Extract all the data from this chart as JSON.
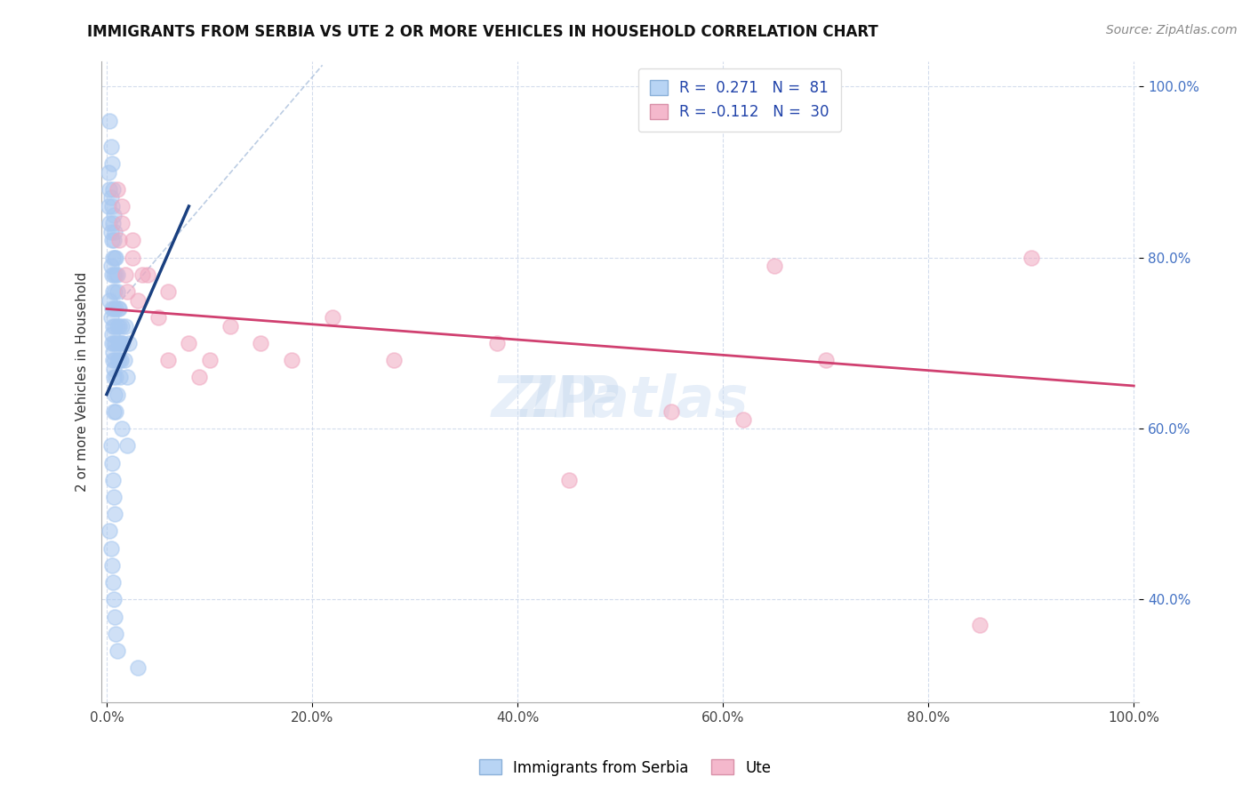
{
  "title": "IMMIGRANTS FROM SERBIA VS UTE 2 OR MORE VEHICLES IN HOUSEHOLD CORRELATION CHART",
  "source_text": "Source: ZipAtlas.com",
  "ylabel": "2 or more Vehicles in Household",
  "xlim": [
    -0.005,
    1.005
  ],
  "ylim": [
    0.28,
    1.03
  ],
  "xtick_vals": [
    0.0,
    0.2,
    0.4,
    0.6,
    0.8,
    1.0
  ],
  "xtick_labels": [
    "0.0%",
    "20.0%",
    "40.0%",
    "60.0%",
    "80.0%",
    "100.0%"
  ],
  "ytick_vals": [
    0.4,
    0.6,
    0.8,
    1.0
  ],
  "ytick_labels": [
    "40.0%",
    "60.0%",
    "80.0%",
    "100.0%"
  ],
  "blue_scatter_color": "#a8c8f0",
  "pink_scatter_color": "#f0a8c0",
  "blue_line_color": "#1a4080",
  "pink_line_color": "#d04070",
  "dash_line_color": "#a0b8d8",
  "watermark": "ZIPatlas",
  "serbia_x": [
    0.002,
    0.002,
    0.003,
    0.003,
    0.004,
    0.004,
    0.004,
    0.005,
    0.005,
    0.005,
    0.005,
    0.005,
    0.006,
    0.006,
    0.006,
    0.006,
    0.006,
    0.007,
    0.007,
    0.007,
    0.007,
    0.007,
    0.007,
    0.008,
    0.008,
    0.008,
    0.008,
    0.008,
    0.009,
    0.009,
    0.009,
    0.009,
    0.009,
    0.01,
    0.01,
    0.01,
    0.01,
    0.011,
    0.011,
    0.012,
    0.012,
    0.013,
    0.013,
    0.014,
    0.015,
    0.016,
    0.017,
    0.018,
    0.02,
    0.022,
    0.003,
    0.004,
    0.005,
    0.006,
    0.007,
    0.008,
    0.009,
    0.01,
    0.012,
    0.015,
    0.004,
    0.005,
    0.006,
    0.007,
    0.008,
    0.003,
    0.004,
    0.005,
    0.006,
    0.007,
    0.003,
    0.004,
    0.005,
    0.006,
    0.007,
    0.008,
    0.009,
    0.01,
    0.015,
    0.02,
    0.03
  ],
  "serbia_y": [
    0.9,
    0.86,
    0.88,
    0.84,
    0.87,
    0.83,
    0.79,
    0.86,
    0.82,
    0.78,
    0.74,
    0.7,
    0.84,
    0.8,
    0.76,
    0.72,
    0.68,
    0.82,
    0.78,
    0.74,
    0.7,
    0.66,
    0.62,
    0.8,
    0.76,
    0.72,
    0.68,
    0.64,
    0.78,
    0.74,
    0.7,
    0.66,
    0.62,
    0.76,
    0.72,
    0.68,
    0.64,
    0.74,
    0.7,
    0.72,
    0.68,
    0.7,
    0.66,
    0.68,
    0.72,
    0.7,
    0.68,
    0.72,
    0.66,
    0.7,
    0.96,
    0.93,
    0.91,
    0.88,
    0.85,
    0.83,
    0.8,
    0.78,
    0.74,
    0.7,
    0.58,
    0.56,
    0.54,
    0.52,
    0.5,
    0.75,
    0.73,
    0.71,
    0.69,
    0.67,
    0.48,
    0.46,
    0.44,
    0.42,
    0.4,
    0.38,
    0.36,
    0.34,
    0.6,
    0.58,
    0.32
  ],
  "ute_x": [
    0.01,
    0.012,
    0.015,
    0.018,
    0.02,
    0.025,
    0.03,
    0.04,
    0.05,
    0.06,
    0.08,
    0.1,
    0.12,
    0.15,
    0.18,
    0.22,
    0.28,
    0.38,
    0.45,
    0.55,
    0.62,
    0.65,
    0.7,
    0.85,
    0.9,
    0.015,
    0.025,
    0.035,
    0.06,
    0.09
  ],
  "ute_y": [
    0.88,
    0.82,
    0.84,
    0.78,
    0.76,
    0.8,
    0.75,
    0.78,
    0.73,
    0.76,
    0.7,
    0.68,
    0.72,
    0.7,
    0.68,
    0.73,
    0.68,
    0.7,
    0.54,
    0.62,
    0.61,
    0.79,
    0.68,
    0.37,
    0.8,
    0.86,
    0.82,
    0.78,
    0.68,
    0.66
  ],
  "blue_line_x": [
    0.0,
    0.08
  ],
  "blue_line_y": [
    0.64,
    0.86
  ],
  "pink_line_x": [
    0.0,
    1.0
  ],
  "pink_line_y": [
    0.74,
    0.65
  ],
  "dash_line_x": [
    0.0,
    0.21
  ],
  "dash_line_y": [
    0.73,
    1.025
  ]
}
